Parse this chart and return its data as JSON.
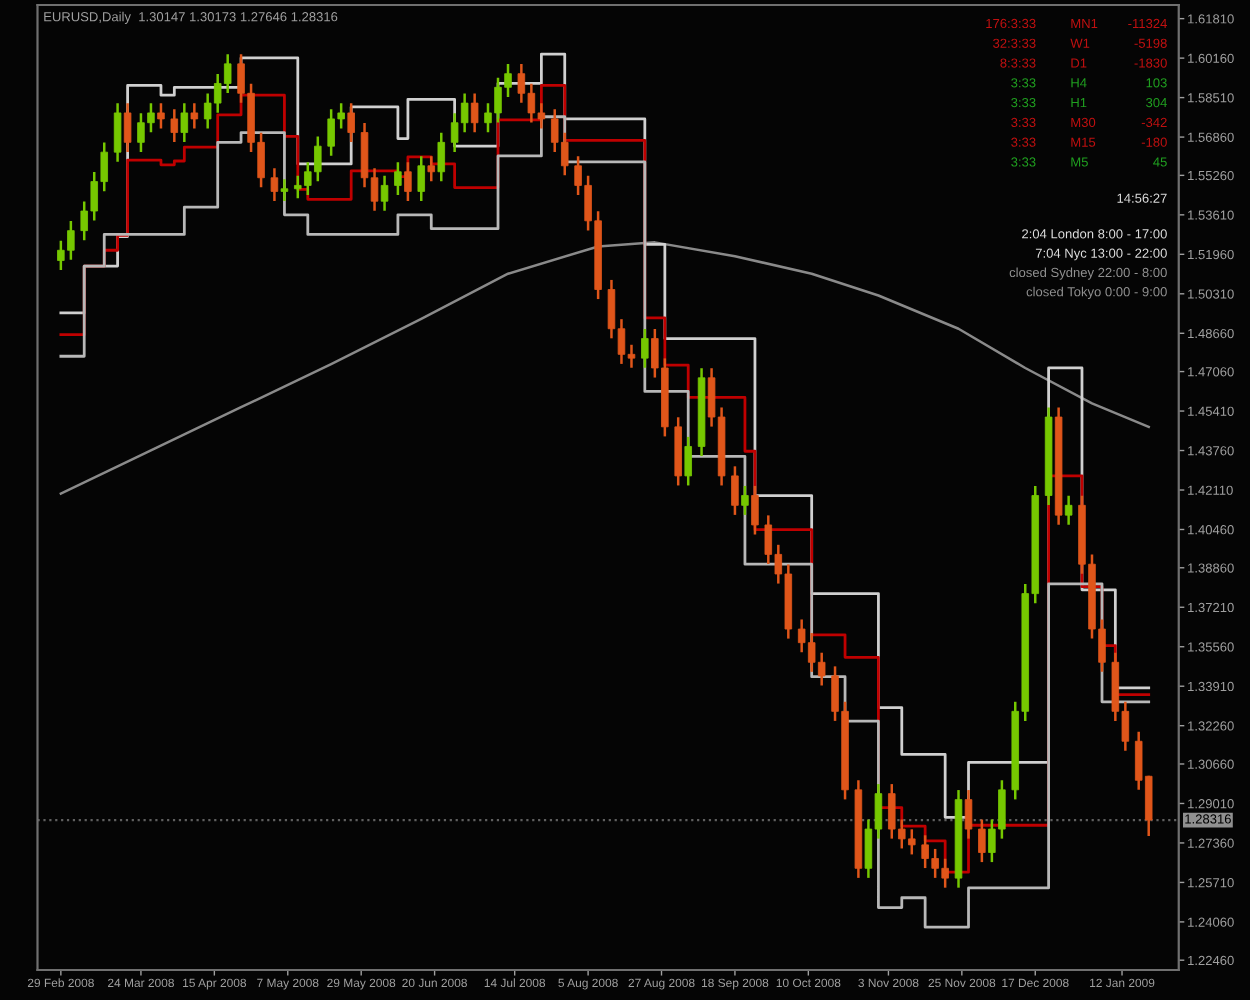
{
  "chart_data": {
    "type": "candlestick",
    "title": "EURUSD,Daily  1.30147 1.30173 1.27646 1.28316",
    "x": [
      "2008-02-29",
      "2008-03-03",
      "2008-03-07",
      "2008-03-10",
      "2008-03-13",
      "2008-03-17",
      "2008-03-20",
      "2008-03-24",
      "2008-03-27",
      "2008-03-30",
      "2008-04-03",
      "2008-04-06",
      "2008-04-09",
      "2008-04-13",
      "2008-04-16",
      "2008-04-19",
      "2008-04-23",
      "2008-04-26",
      "2008-04-29",
      "2008-05-03",
      "2008-05-06",
      "2008-05-10",
      "2008-05-13",
      "2008-05-16",
      "2008-05-20",
      "2008-05-23",
      "2008-05-26",
      "2008-05-30",
      "2008-06-02",
      "2008-06-05",
      "2008-06-09",
      "2008-06-12",
      "2008-06-16",
      "2008-06-19",
      "2008-06-22",
      "2008-06-26",
      "2008-06-29",
      "2008-07-02",
      "2008-07-06",
      "2008-07-09",
      "2008-07-12",
      "2008-07-16",
      "2008-07-19",
      "2008-07-22",
      "2008-07-26",
      "2008-07-29",
      "2008-08-02",
      "2008-08-05",
      "2008-08-08",
      "2008-08-12",
      "2008-08-15",
      "2008-08-18",
      "2008-08-22",
      "2008-08-25",
      "2008-08-28",
      "2008-09-01",
      "2008-09-04",
      "2008-09-08",
      "2008-09-11",
      "2008-09-14",
      "2008-09-18",
      "2008-09-21",
      "2008-09-24",
      "2008-09-28",
      "2008-10-01",
      "2008-10-04",
      "2008-10-08",
      "2008-10-11",
      "2008-10-14",
      "2008-10-18",
      "2008-10-21",
      "2008-10-25",
      "2008-10-28",
      "2008-10-31",
      "2008-11-04",
      "2008-11-07",
      "2008-11-10",
      "2008-11-14",
      "2008-11-17",
      "2008-11-20",
      "2008-11-24",
      "2008-11-27",
      "2008-12-01",
      "2008-12-04",
      "2008-12-07",
      "2008-12-11",
      "2008-12-14",
      "2008-12-17",
      "2008-12-21",
      "2008-12-24",
      "2008-12-27",
      "2008-12-31",
      "2009-01-03",
      "2009-01-06",
      "2009-01-10",
      "2009-01-13",
      "2009-01-17",
      "2009-01-20"
    ],
    "ohlc": [
      [
        1.517,
        1.5253,
        1.513,
        1.5213
      ],
      [
        1.5213,
        1.5335,
        1.5173,
        1.5295
      ],
      [
        1.5295,
        1.5417,
        1.5255,
        1.5377
      ],
      [
        1.5377,
        1.554,
        1.5337,
        1.55
      ],
      [
        1.55,
        1.5663,
        1.546,
        1.5623
      ],
      [
        1.5623,
        1.5827,
        1.5583,
        1.5787
      ],
      [
        1.5787,
        1.5827,
        1.5624,
        1.5664
      ],
      [
        1.5664,
        1.5786,
        1.5624,
        1.5746
      ],
      [
        1.5746,
        1.5827,
        1.5706,
        1.5787
      ],
      [
        1.5787,
        1.5827,
        1.5722,
        1.5762
      ],
      [
        1.5762,
        1.5802,
        1.5665,
        1.5705
      ],
      [
        1.5705,
        1.5827,
        1.5665,
        1.5787
      ],
      [
        1.5787,
        1.5827,
        1.5722,
        1.5762
      ],
      [
        1.5762,
        1.5868,
        1.5722,
        1.5828
      ],
      [
        1.5828,
        1.595,
        1.5788,
        1.591
      ],
      [
        1.591,
        1.6032,
        1.587,
        1.5992
      ],
      [
        1.5992,
        1.6032,
        1.5829,
        1.5869
      ],
      [
        1.5869,
        1.5909,
        1.5624,
        1.5664
      ],
      [
        1.5664,
        1.5704,
        1.5476,
        1.5516
      ],
      [
        1.5516,
        1.5556,
        1.5419,
        1.5459
      ],
      [
        1.5459,
        1.551,
        1.5419,
        1.547
      ],
      [
        1.547,
        1.5524,
        1.543,
        1.5484
      ],
      [
        1.5484,
        1.5581,
        1.5444,
        1.5541
      ],
      [
        1.5541,
        1.5688,
        1.5501,
        1.5648
      ],
      [
        1.5648,
        1.5802,
        1.5608,
        1.5762
      ],
      [
        1.5762,
        1.5827,
        1.5722,
        1.5787
      ],
      [
        1.5787,
        1.5827,
        1.5665,
        1.5705
      ],
      [
        1.5705,
        1.5745,
        1.5476,
        1.5516
      ],
      [
        1.5516,
        1.5556,
        1.5378,
        1.5418
      ],
      [
        1.5418,
        1.5524,
        1.5378,
        1.5484
      ],
      [
        1.5484,
        1.5581,
        1.5444,
        1.5541
      ],
      [
        1.5541,
        1.5581,
        1.5419,
        1.5459
      ],
      [
        1.5459,
        1.5606,
        1.5419,
        1.5566
      ],
      [
        1.5566,
        1.5606,
        1.5501,
        1.5541
      ],
      [
        1.5541,
        1.5704,
        1.5501,
        1.5664
      ],
      [
        1.5664,
        1.5786,
        1.5624,
        1.5746
      ],
      [
        1.5746,
        1.5868,
        1.5706,
        1.5828
      ],
      [
        1.5828,
        1.5868,
        1.5706,
        1.5746
      ],
      [
        1.5746,
        1.5827,
        1.5706,
        1.5787
      ],
      [
        1.5787,
        1.5934,
        1.5747,
        1.5894
      ],
      [
        1.5894,
        1.5991,
        1.5854,
        1.5951
      ],
      [
        1.5951,
        1.5991,
        1.5829,
        1.5869
      ],
      [
        1.5869,
        1.5909,
        1.5747,
        1.5787
      ],
      [
        1.5787,
        1.5827,
        1.5722,
        1.5762
      ],
      [
        1.5762,
        1.5802,
        1.5624,
        1.5664
      ],
      [
        1.5664,
        1.5704,
        1.5526,
        1.5566
      ],
      [
        1.5566,
        1.5606,
        1.5444,
        1.5484
      ],
      [
        1.5484,
        1.5524,
        1.5296,
        1.5336
      ],
      [
        1.5336,
        1.5376,
        1.5009,
        1.5049
      ],
      [
        1.5049,
        1.5089,
        1.4845,
        1.4885
      ],
      [
        1.4885,
        1.4925,
        1.4738,
        1.4778
      ],
      [
        1.4778,
        1.4818,
        1.4722,
        1.4762
      ],
      [
        1.4762,
        1.4884,
        1.4722,
        1.4844
      ],
      [
        1.4844,
        1.4884,
        1.4681,
        1.4721
      ],
      [
        1.4721,
        1.4761,
        1.4435,
        1.4475
      ],
      [
        1.4475,
        1.4515,
        1.423,
        1.427
      ],
      [
        1.427,
        1.4433,
        1.423,
        1.4393
      ],
      [
        1.4393,
        1.472,
        1.4353,
        1.468
      ],
      [
        1.468,
        1.472,
        1.4476,
        1.4516
      ],
      [
        1.4516,
        1.4556,
        1.423,
        1.427
      ],
      [
        1.427,
        1.431,
        1.4107,
        1.4147
      ],
      [
        1.4147,
        1.4228,
        1.4107,
        1.4188
      ],
      [
        1.4188,
        1.4228,
        1.4025,
        1.4065
      ],
      [
        1.4065,
        1.4105,
        1.3902,
        1.3942
      ],
      [
        1.3942,
        1.3982,
        1.382,
        1.386
      ],
      [
        1.386,
        1.39,
        1.359,
        1.363
      ],
      [
        1.363,
        1.367,
        1.3533,
        1.3573
      ],
      [
        1.3573,
        1.3613,
        1.3451,
        1.3491
      ],
      [
        1.3491,
        1.3531,
        1.3394,
        1.3434
      ],
      [
        1.3434,
        1.3474,
        1.3246,
        1.3286
      ],
      [
        1.3286,
        1.3326,
        1.2918,
        1.2958
      ],
      [
        1.2958,
        1.2998,
        1.259,
        1.263
      ],
      [
        1.263,
        1.2834,
        1.259,
        1.2794
      ],
      [
        1.2794,
        1.2982,
        1.2754,
        1.2942
      ],
      [
        1.2942,
        1.2982,
        1.2754,
        1.2794
      ],
      [
        1.2794,
        1.2834,
        1.2713,
        1.2753
      ],
      [
        1.2753,
        1.2793,
        1.2688,
        1.2728
      ],
      [
        1.2728,
        1.2768,
        1.2631,
        1.2671
      ],
      [
        1.2671,
        1.2711,
        1.259,
        1.263
      ],
      [
        1.263,
        1.267,
        1.2549,
        1.2589
      ],
      [
        1.2589,
        1.2957,
        1.2549,
        1.2917
      ],
      [
        1.2917,
        1.2957,
        1.2754,
        1.2794
      ],
      [
        1.2794,
        1.2834,
        1.2656,
        1.2696
      ],
      [
        1.2696,
        1.2834,
        1.2656,
        1.2794
      ],
      [
        1.2794,
        1.2998,
        1.2754,
        1.2958
      ],
      [
        1.2958,
        1.3326,
        1.2918,
        1.3286
      ],
      [
        1.3286,
        1.3818,
        1.3246,
        1.3778
      ],
      [
        1.3778,
        1.4228,
        1.3738,
        1.4188
      ],
      [
        1.4188,
        1.4556,
        1.4148,
        1.4516
      ],
      [
        1.4516,
        1.4556,
        1.4066,
        1.4106
      ],
      [
        1.4106,
        1.4187,
        1.4066,
        1.4147
      ],
      [
        1.4147,
        1.4187,
        1.3861,
        1.3901
      ],
      [
        1.3901,
        1.3941,
        1.359,
        1.363
      ],
      [
        1.363,
        1.367,
        1.3451,
        1.3491
      ],
      [
        1.3491,
        1.3531,
        1.3246,
        1.3286
      ],
      [
        1.3286,
        1.3326,
        1.3121,
        1.3161
      ],
      [
        1.3161,
        1.3201,
        1.2958,
        1.2998
      ],
      [
        1.30147,
        1.30173,
        1.27646,
        1.28316
      ]
    ],
    "colors": [
      "#76c800",
      "#76c800",
      "#76c800",
      "#76c800",
      "#76c800",
      "#76c800",
      "#e0561a",
      "#76c800",
      "#76c800",
      "#e0561a",
      "#e0561a",
      "#76c800",
      "#e0561a",
      "#76c800",
      "#76c800",
      "#76c800",
      "#e0561a",
      "#e0561a",
      "#e0561a",
      "#e0561a",
      "#76c800",
      "#76c800",
      "#76c800",
      "#76c800",
      "#76c800",
      "#76c800",
      "#e0561a",
      "#e0561a",
      "#e0561a",
      "#76c800",
      "#76c800",
      "#e0561a",
      "#76c800",
      "#e0561a",
      "#76c800",
      "#76c800",
      "#76c800",
      "#e0561a",
      "#76c800",
      "#76c800",
      "#76c800",
      "#e0561a",
      "#e0561a",
      "#e0561a",
      "#e0561a",
      "#e0561a",
      "#e0561a",
      "#e0561a",
      "#e0561a",
      "#e0561a",
      "#e0561a",
      "#e0561a",
      "#76c800",
      "#e0561a",
      "#e0561a",
      "#e0561a",
      "#76c800",
      "#76c800",
      "#e0561a",
      "#e0561a",
      "#e0561a",
      "#76c800",
      "#e0561a",
      "#e0561a",
      "#e0561a",
      "#e0561a",
      "#e0561a",
      "#e0561a",
      "#e0561a",
      "#e0561a",
      "#e0561a",
      "#e0561a",
      "#76c800",
      "#76c800",
      "#e0561a",
      "#e0561a",
      "#e0561a",
      "#e0561a",
      "#e0561a",
      "#e0561a",
      "#76c800",
      "#e0561a",
      "#e0561a",
      "#76c800",
      "#76c800",
      "#76c800",
      "#76c800",
      "#76c800",
      "#76c800",
      "#e0561a",
      "#76c800",
      "#e0561a",
      "#e0561a",
      "#e0561a",
      "#e0561a",
      "#e0561a",
      "#e0561a",
      "#e0561a"
    ],
    "series": [
      {
        "type": "line",
        "color": "#8a8a8a",
        "x": [
          "2008-02-29",
          "2008-03-27",
          "2008-04-23",
          "2008-05-20",
          "2008-06-16",
          "2008-07-12",
          "2008-08-08",
          "2008-08-25",
          "2008-09-18",
          "2008-10-11",
          "2008-10-31",
          "2008-11-24",
          "2008-12-14",
          "2009-01-03",
          "2009-01-20"
        ],
        "values": [
          1.4196,
          1.4377,
          1.4557,
          1.4737,
          1.4926,
          1.5115,
          1.5229,
          1.5246,
          1.5188,
          1.5115,
          1.5024,
          1.4885,
          1.4721,
          1.4573,
          1.4475
        ]
      },
      {
        "type": "step",
        "color": "#d0d0d0",
        "x": [
          "2008-02-29",
          "2008-03-07",
          "2008-03-17",
          "2008-03-20",
          "2008-03-30",
          "2008-04-03",
          "2008-04-23",
          "2008-05-10",
          "2008-05-26",
          "2008-06-09",
          "2008-06-12",
          "2008-06-26",
          "2008-07-09",
          "2008-07-22",
          "2008-07-29",
          "2008-08-22",
          "2008-08-28",
          "2008-09-24",
          "2008-10-11",
          "2008-10-31",
          "2008-11-07",
          "2008-11-20",
          "2008-11-27",
          "2008-12-21",
          "2008-12-31",
          "2009-01-10",
          "2009-01-20"
        ],
        "values": [
          1.4951,
          1.5147,
          1.527,
          1.5902,
          1.5861,
          1.5894,
          1.6017,
          1.5574,
          1.5812,
          1.568,
          1.5844,
          1.5648,
          1.591,
          1.6033,
          1.5762,
          1.5238,
          1.4844,
          1.4188,
          1.3778,
          1.3302,
          1.3106,
          1.2843,
          1.3073,
          1.4721,
          1.3794,
          1.3384,
          1.3384
        ]
      },
      {
        "type": "step",
        "color": "#c00000",
        "x": [
          "2008-02-29",
          "2008-03-07",
          "2008-03-13",
          "2008-03-17",
          "2008-03-20",
          "2008-03-30",
          "2008-04-03",
          "2008-04-06",
          "2008-04-16",
          "2008-04-23",
          "2008-05-06",
          "2008-05-10",
          "2008-05-13",
          "2008-05-26",
          "2008-06-09",
          "2008-06-12",
          "2008-06-19",
          "2008-06-26",
          "2008-07-09",
          "2008-07-22",
          "2008-07-29",
          "2008-08-22",
          "2008-08-28",
          "2008-09-04",
          "2008-09-21",
          "2008-09-24",
          "2008-10-11",
          "2008-10-21",
          "2008-10-31",
          "2008-11-07",
          "2008-11-14",
          "2008-11-20",
          "2008-11-27",
          "2008-12-21",
          "2008-12-31",
          "2009-01-06",
          "2009-01-10",
          "2009-01-20"
        ],
        "values": [
          1.486,
          1.5147,
          1.5213,
          1.5275,
          1.559,
          1.557,
          1.5586,
          1.5644,
          1.5779,
          1.5861,
          1.5689,
          1.5467,
          1.5426,
          1.5545,
          1.5521,
          1.5603,
          1.5574,
          1.5475,
          1.5758,
          1.5902,
          1.5672,
          1.493,
          1.4733,
          1.4598,
          1.4373,
          1.4045,
          1.3606,
          1.3512,
          1.2884,
          1.2806,
          1.2745,
          1.2614,
          1.281,
          1.427,
          1.3807,
          1.3561,
          1.3356,
          1.3356
        ]
      },
      {
        "type": "step",
        "color": "#b8b8b8",
        "x": [
          "2008-02-29",
          "2008-03-07",
          "2008-03-13",
          "2008-04-06",
          "2008-04-16",
          "2008-04-23",
          "2008-05-06",
          "2008-05-13",
          "2008-06-09",
          "2008-06-19",
          "2008-07-09",
          "2008-07-22",
          "2008-07-29",
          "2008-08-22",
          "2008-09-04",
          "2008-09-21",
          "2008-10-11",
          "2008-10-21",
          "2008-10-31",
          "2008-11-07",
          "2008-11-14",
          "2008-11-27",
          "2008-12-21",
          "2009-01-06",
          "2009-01-20"
        ],
        "values": [
          1.477,
          1.5147,
          1.5279,
          1.5393,
          1.5664,
          1.5705,
          1.5361,
          1.5279,
          1.5361,
          1.5303,
          1.5607,
          1.5771,
          1.5582,
          1.4623,
          1.4352,
          1.3901,
          1.3431,
          1.3245,
          1.2466,
          1.2507,
          1.2384,
          1.2548,
          1.3819,
          1.3326,
          1.3326
        ]
      }
    ],
    "ref_lines": [
      {
        "axis": "y",
        "value": 1.28316,
        "label": "1.28316",
        "color": "#606060",
        "line_style": "dotted"
      }
    ],
    "xlim": [
      "2008-02-22",
      "2009-01-29"
    ],
    "xticks": [
      {
        "value": "2008-02-29",
        "label": "29 Feb 2008"
      },
      {
        "value": "2008-03-24",
        "label": "24 Mar 2008"
      },
      {
        "value": "2008-04-15",
        "label": "15 Apr 2008"
      },
      {
        "value": "2008-05-07",
        "label": "7 May 2008"
      },
      {
        "value": "2008-05-29",
        "label": "29 May 2008"
      },
      {
        "value": "2008-06-20",
        "label": "20 Jun 2008"
      },
      {
        "value": "2008-07-14",
        "label": "14 Jul 2008"
      },
      {
        "value": "2008-08-05",
        "label": "5 Aug 2008"
      },
      {
        "value": "2008-08-27",
        "label": "27 Aug 2008"
      },
      {
        "value": "2008-09-18",
        "label": "18 Sep 2008"
      },
      {
        "value": "2008-10-10",
        "label": "10 Oct 2008"
      },
      {
        "value": "2008-11-03",
        "label": "3 Nov 2008"
      },
      {
        "value": "2008-11-25",
        "label": "25 Nov 2008"
      },
      {
        "value": "2008-12-17",
        "label": "17 Dec 2008"
      },
      {
        "value": "2009-01-12",
        "label": "12 Jan 2009"
      }
    ],
    "ylim": [
      1.2205,
      1.6238
    ],
    "yticks": [
      {
        "value": 1.2246,
        "label": "1.22460"
      },
      {
        "value": 1.2406,
        "label": "1.24060"
      },
      {
        "value": 1.2571,
        "label": "1.25710"
      },
      {
        "value": 1.2736,
        "label": "1.27360"
      },
      {
        "value": 1.2901,
        "label": "1.29010"
      },
      {
        "value": 1.3066,
        "label": "1.30660"
      },
      {
        "value": 1.3226,
        "label": "1.32260"
      },
      {
        "value": 1.3391,
        "label": "1.33910"
      },
      {
        "value": 1.3556,
        "label": "1.35560"
      },
      {
        "value": 1.3721,
        "label": "1.37210"
      },
      {
        "value": 1.3886,
        "label": "1.38860"
      },
      {
        "value": 1.4046,
        "label": "1.40460"
      },
      {
        "value": 1.4211,
        "label": "1.42110"
      },
      {
        "value": 1.4376,
        "label": "1.43760"
      },
      {
        "value": 1.4541,
        "label": "1.45410"
      },
      {
        "value": 1.4706,
        "label": "1.47060"
      },
      {
        "value": 1.4866,
        "label": "1.48660"
      },
      {
        "value": 1.5031,
        "label": "1.50310"
      },
      {
        "value": 1.5196,
        "label": "1.51960"
      },
      {
        "value": 1.5361,
        "label": "1.53610"
      },
      {
        "value": 1.5526,
        "label": "1.55260"
      },
      {
        "value": 1.5686,
        "label": "1.56860"
      },
      {
        "value": 1.5851,
        "label": "1.58510"
      },
      {
        "value": 1.6016,
        "label": "1.60160"
      },
      {
        "value": 1.6181,
        "label": "1.61810"
      }
    ],
    "grid": false,
    "annotations": [
      "176:3:33",
      "MN1",
      "-11324",
      "32:3:33",
      "W1",
      "-5198",
      "8:3:33",
      "D1",
      "-1830",
      "3:33",
      "H4",
      "103",
      "3:33",
      "H1",
      "304",
      "3:33",
      "M30",
      "-342",
      "3:33",
      "M15",
      "-180",
      "3:33",
      "M5",
      "45",
      "14:56:27",
      "2:04 London 8:00 - 17:00",
      "7:04 Nyc 13:00 - 22:00",
      "closed Sydney 22:00 - 8:00",
      "closed Tokyo 0:00 - 9:00"
    ]
  }
}
